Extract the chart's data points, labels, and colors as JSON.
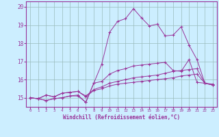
{
  "xlabel": "Windchill (Refroidissement éolien,°C)",
  "bg_color": "#cceeff",
  "line_color": "#993399",
  "grid_color": "#99bbbb",
  "ylim": [
    14.5,
    20.3
  ],
  "xlim": [
    -0.5,
    23.5
  ],
  "yticks": [
    15,
    16,
    17,
    18,
    19,
    20
  ],
  "xticks": [
    0,
    1,
    2,
    3,
    4,
    5,
    6,
    7,
    8,
    9,
    10,
    11,
    12,
    13,
    14,
    15,
    16,
    17,
    18,
    19,
    20,
    21,
    22,
    23
  ],
  "lines": [
    [
      15.0,
      14.95,
      14.85,
      14.95,
      15.0,
      15.1,
      15.1,
      14.75,
      15.8,
      15.9,
      16.3,
      16.5,
      16.6,
      16.75,
      16.8,
      16.85,
      16.9,
      16.95,
      16.5,
      16.45,
      17.1,
      15.85,
      15.8,
      15.75
    ],
    [
      15.0,
      14.95,
      14.85,
      14.95,
      15.0,
      15.1,
      15.15,
      14.75,
      15.8,
      16.85,
      18.6,
      19.2,
      19.35,
      19.9,
      19.4,
      18.95,
      19.05,
      18.4,
      18.45,
      18.9,
      17.9,
      17.1,
      15.8,
      15.7
    ],
    [
      15.0,
      14.95,
      15.15,
      15.05,
      15.25,
      15.3,
      15.35,
      15.1,
      15.45,
      15.6,
      15.8,
      15.9,
      16.0,
      16.1,
      16.15,
      16.2,
      16.25,
      16.35,
      16.45,
      16.5,
      16.55,
      16.6,
      15.8,
      15.7
    ],
    [
      15.0,
      14.95,
      15.15,
      15.05,
      15.25,
      15.3,
      15.35,
      15.05,
      15.4,
      15.5,
      15.65,
      15.75,
      15.8,
      15.85,
      15.9,
      15.95,
      16.0,
      16.05,
      16.1,
      16.2,
      16.25,
      16.3,
      15.8,
      15.7
    ]
  ]
}
